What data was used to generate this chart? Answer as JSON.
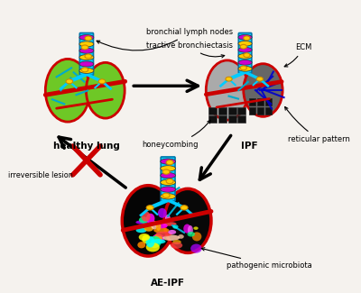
{
  "bg_color": "#f5f2ee",
  "labels": {
    "healthy_lung": "healthy lung",
    "ipf": "IPF",
    "ae_ipf": "AE-IPF",
    "bronchial_lymph_nodes": "bronchial lymph nodes",
    "tractive_bronchiectasis": "tractive bronchiectasis",
    "honeycombing": "honeycombing",
    "ecm": "ECM",
    "reticular_pattern": "reticular pattern",
    "irreversible_lesion": "irreversible lesion",
    "pathogenic_microbiota": "pathogenic microbiota"
  },
  "lung_positions": {
    "healthy": [
      100,
      95
    ],
    "ipf": [
      285,
      95
    ],
    "ae_ipf": [
      195,
      240
    ]
  }
}
